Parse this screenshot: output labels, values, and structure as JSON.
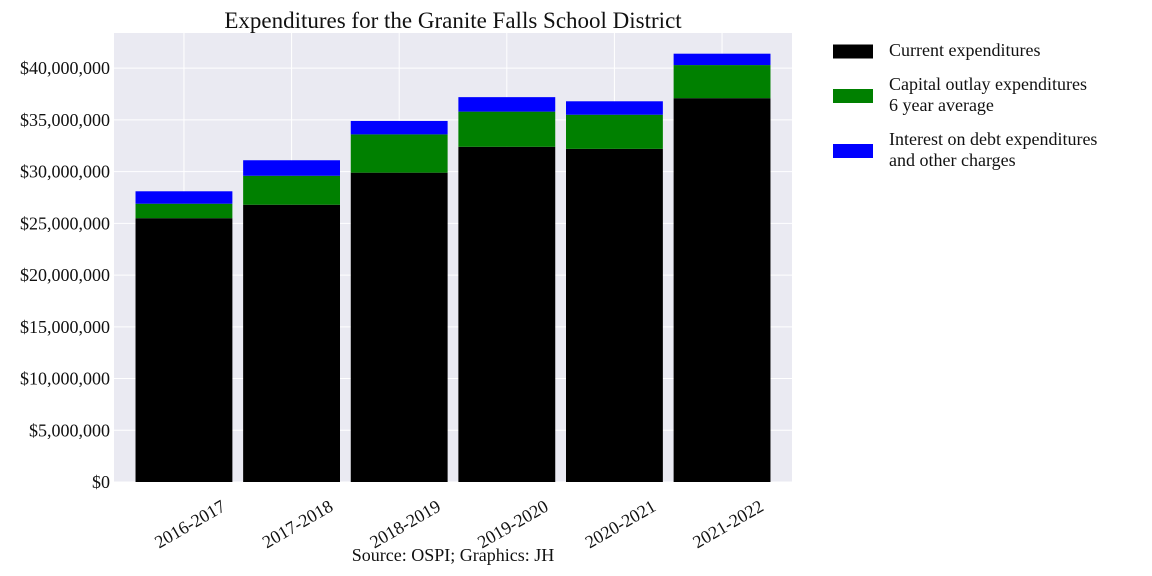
{
  "chart_data": {
    "type": "bar",
    "stacked": true,
    "title": "Expenditures for the Granite Falls School District",
    "xlabel": "Source: OSPI; Graphics: JH",
    "ylabel": "",
    "categories": [
      "2016-2017",
      "2017-2018",
      "2018-2019",
      "2019-2020",
      "2020-2021",
      "2021-2022"
    ],
    "y_ticks": [
      "$0",
      "$5,000,000",
      "$10,000,000",
      "$15,000,000",
      "$20,000,000",
      "$25,000,000",
      "$30,000,000",
      "$35,000,000",
      "$40,000,000"
    ],
    "ylim": [
      0,
      43400000
    ],
    "grid": true,
    "legend_position": "outside-right-top",
    "series": [
      {
        "name": "Current expenditures",
        "color": "#000000",
        "values": [
          25500000,
          26800000,
          29900000,
          32400000,
          32200000,
          37100000
        ]
      },
      {
        "name": "Capital outlay expenditures\n6 year average",
        "color": "#008000",
        "values": [
          1400000,
          2800000,
          3700000,
          3400000,
          3300000,
          3200000
        ]
      },
      {
        "name": "Interest on debt expenditures\nand other charges",
        "color": "#0000ff",
        "values": [
          1200000,
          1500000,
          1300000,
          1400000,
          1300000,
          1100000
        ]
      }
    ]
  }
}
